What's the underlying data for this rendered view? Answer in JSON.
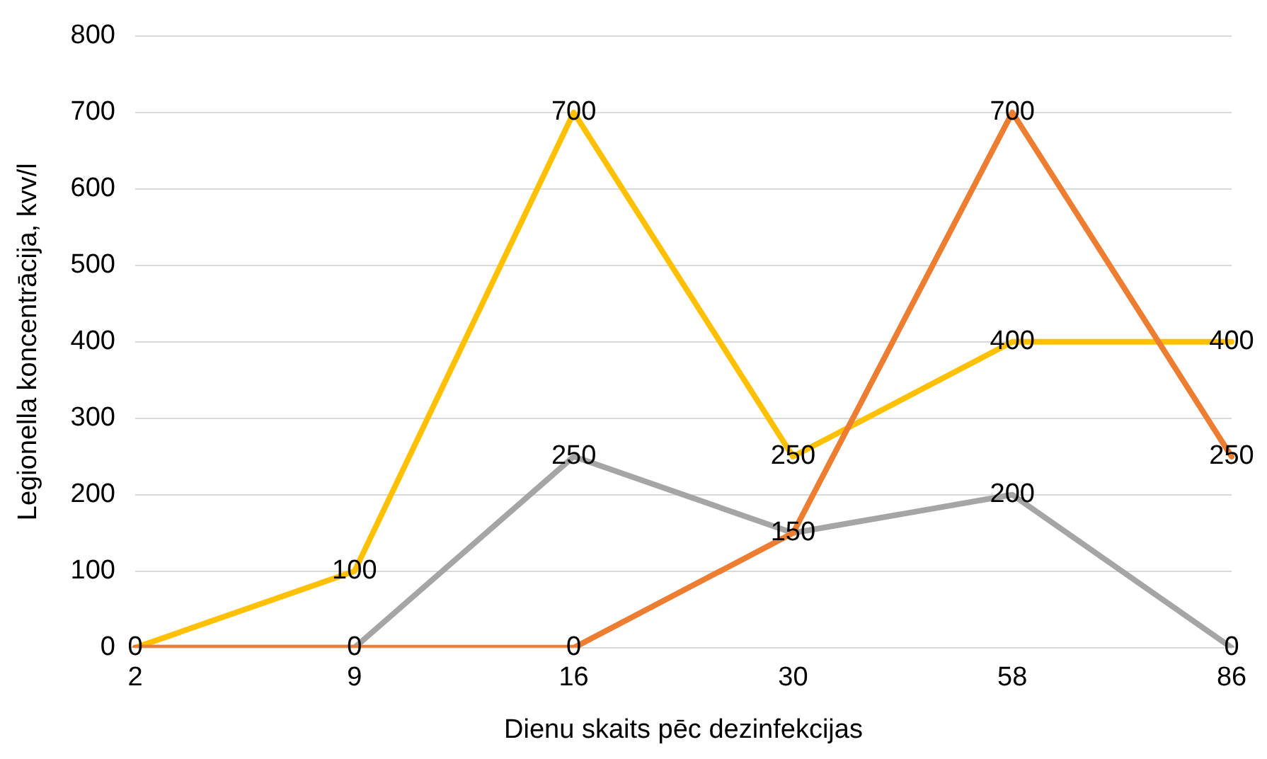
{
  "chart_data": {
    "type": "line",
    "xlabel": "Dienu skaits pēc dezinfekcijas",
    "ylabel": "Legionella koncentrācija, kvv/l",
    "categories": [
      "2",
      "9",
      "16",
      "30",
      "58",
      "86"
    ],
    "series": [
      {
        "color": "#ed7d31",
        "values": [
          0,
          0,
          0,
          150,
          700,
          250
        ],
        "value_labels": [
          "0",
          "0",
          "0",
          "150",
          "700",
          "250"
        ]
      },
      {
        "color": "#a5a5a5",
        "values": [
          0,
          0,
          250,
          150,
          200,
          0
        ],
        "value_labels": [
          null,
          null,
          "250",
          null,
          "200",
          "0"
        ]
      },
      {
        "color": "#ffc000",
        "values": [
          0,
          100,
          700,
          250,
          400,
          400
        ],
        "value_labels": [
          null,
          "100",
          "700",
          "250",
          "400",
          "400"
        ]
      }
    ],
    "ylim": [
      0,
      800
    ],
    "yticks": [
      0,
      100,
      200,
      300,
      400,
      500,
      600,
      700,
      800
    ],
    "grid": "y",
    "legend": false,
    "marker": "none",
    "line_style": "solid"
  }
}
